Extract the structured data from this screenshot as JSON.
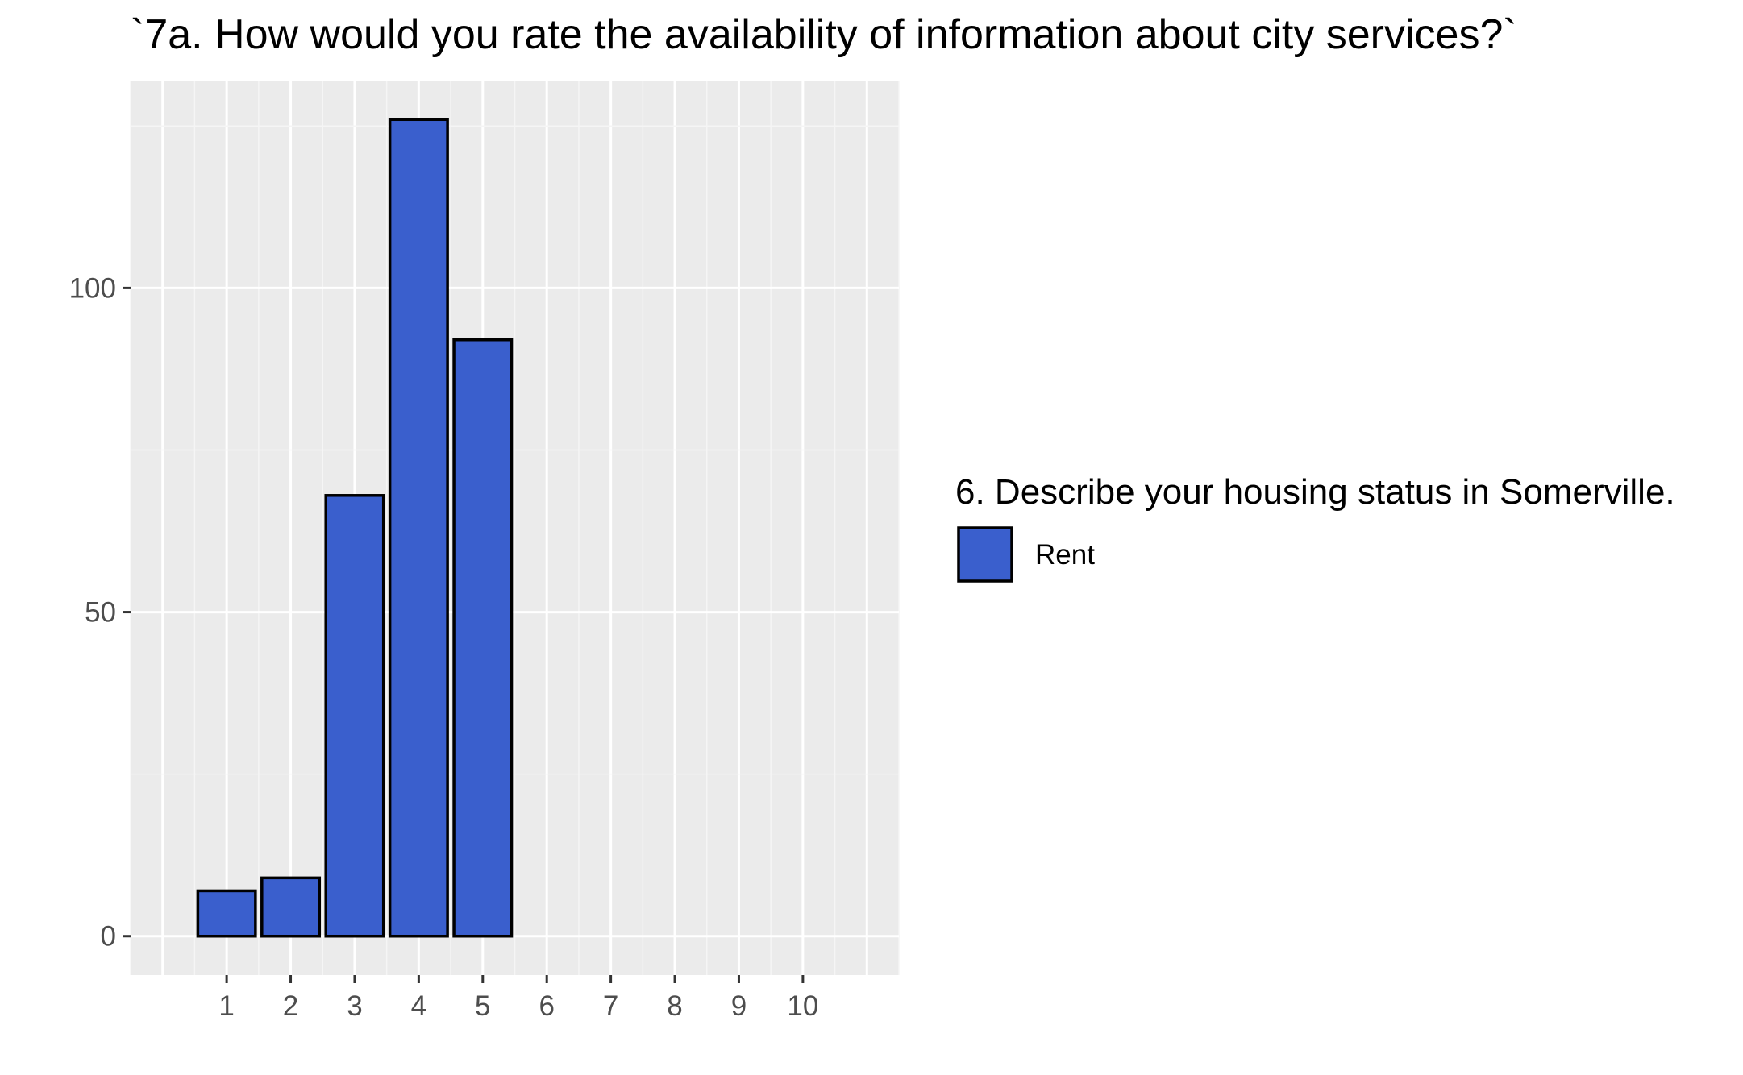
{
  "chart_data": {
    "type": "bar",
    "title": "`7a. How would you rate the availability of information about city services?`",
    "xlabel": "",
    "ylabel": "",
    "categories": [
      "1",
      "2",
      "3",
      "4",
      "5",
      "6",
      "7",
      "8",
      "9",
      "10"
    ],
    "series": [
      {
        "name": "Rent",
        "values": [
          7,
          9,
          68,
          126,
          92,
          0,
          0,
          0,
          0,
          0
        ]
      }
    ],
    "y_ticks": [
      0,
      50,
      100
    ],
    "ylim": [
      -6,
      132
    ],
    "xlim": [
      -0.5,
      11.5
    ],
    "grid": true,
    "legend": {
      "title": "6. Describe your housing status in Somerville.",
      "position": "right"
    },
    "colors": {
      "bar_fill": "#3A5FCD",
      "bar_stroke": "#000000",
      "panel_bg": "#EBEBEB",
      "grid_major": "#FFFFFF",
      "grid_minor": "#F5F5F5",
      "tick_text": "#4D4D4D",
      "tick_mark": "#333333"
    }
  }
}
